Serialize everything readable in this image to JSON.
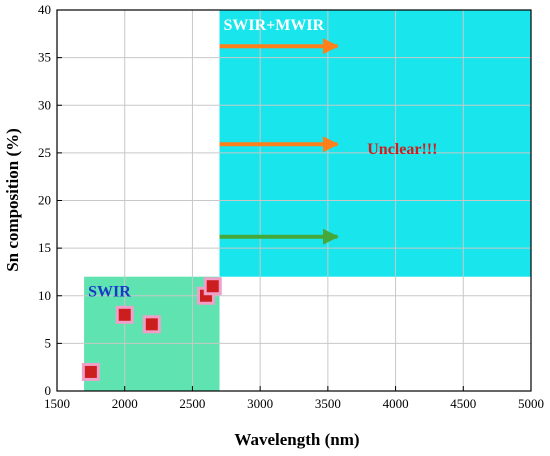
{
  "chart_data": {
    "type": "scatter",
    "xlabel": "Wavelength (nm)",
    "ylabel": "Sn composition (%)",
    "xlim": [
      1500,
      5000
    ],
    "ylim": [
      0,
      40
    ],
    "x_ticks": [
      1500,
      2000,
      2500,
      3000,
      3500,
      4000,
      4500,
      5000
    ],
    "y_ticks": [
      0,
      5,
      10,
      15,
      20,
      25,
      30,
      35,
      40
    ],
    "x_tick_labels": [
      "1500",
      "2000",
      "2500",
      "3000",
      "3500",
      "4000",
      "4500",
      "5000"
    ],
    "y_tick_labels": [
      "0",
      "5",
      "10",
      "15",
      "20",
      "25",
      "30",
      "35",
      "40"
    ],
    "grid": true,
    "points": [
      {
        "x": 1750,
        "y": 2
      },
      {
        "x": 2000,
        "y": 8
      },
      {
        "x": 2200,
        "y": 7
      },
      {
        "x": 2600,
        "y": 10
      },
      {
        "x": 2650,
        "y": 11
      }
    ],
    "marker_color": "#cc1e1e",
    "marker_halo_color": "#f0a0c8",
    "regions": [
      {
        "label": "SWIR",
        "x_range": [
          1700,
          2700
        ],
        "y_range": [
          0,
          12
        ],
        "color": "#5fe3b0",
        "label_color": "#1a38c8"
      },
      {
        "label": "SWIR+MWIR",
        "x_range": [
          2700,
          5000
        ],
        "y_range": [
          12,
          40
        ],
        "color": "#19e6ec",
        "label_color": "#ffffff"
      }
    ],
    "annotations": [
      {
        "text": "Unclear!!!",
        "x": 4050,
        "y": 25.5,
        "color": "#cc1e1e"
      }
    ],
    "arrows": [
      {
        "x_from": 2700,
        "x_to": 3570,
        "y": 36.2,
        "color": "#ff7f1a"
      },
      {
        "x_from": 2700,
        "x_to": 3570,
        "y": 25.9,
        "color": "#ff7f1a"
      },
      {
        "x_from": 2700,
        "x_to": 3570,
        "y": 16.2,
        "color": "#44a83a"
      }
    ]
  }
}
